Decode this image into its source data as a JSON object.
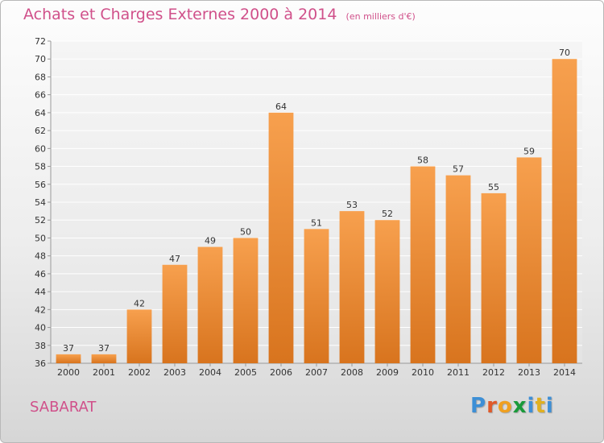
{
  "header": {
    "title": "Achats et Charges Externes 2000 à 2014",
    "subtitle": "(en milliers d'€)"
  },
  "footer": {
    "commune": "SABARAT",
    "logo_letters": [
      "P",
      "r",
      "o",
      "x",
      "i",
      "t",
      "i"
    ],
    "logo_colors": [
      "#3d8fd6",
      "#e05a2a",
      "#f0a020",
      "#1a9a3a",
      "#3d8fd6",
      "#e0b020",
      "#3d8fd6"
    ]
  },
  "chart_data": {
    "type": "bar",
    "title": "Achats et Charges Externes 2000 à 2014",
    "subtitle": "(en milliers d'€)",
    "categories": [
      "2000",
      "2001",
      "2002",
      "2003",
      "2004",
      "2005",
      "2006",
      "2007",
      "2008",
      "2009",
      "2010",
      "2011",
      "2012",
      "2013",
      "2014"
    ],
    "values": [
      37,
      37,
      42,
      47,
      49,
      50,
      64,
      51,
      53,
      52,
      58,
      57,
      55,
      59,
      70
    ],
    "ylim": [
      36,
      72
    ],
    "ytick_step": 2,
    "grid": true,
    "bar_color_top": "#f7a04e",
    "bar_color_bottom": "#d8741e",
    "label_color": "#333333"
  }
}
